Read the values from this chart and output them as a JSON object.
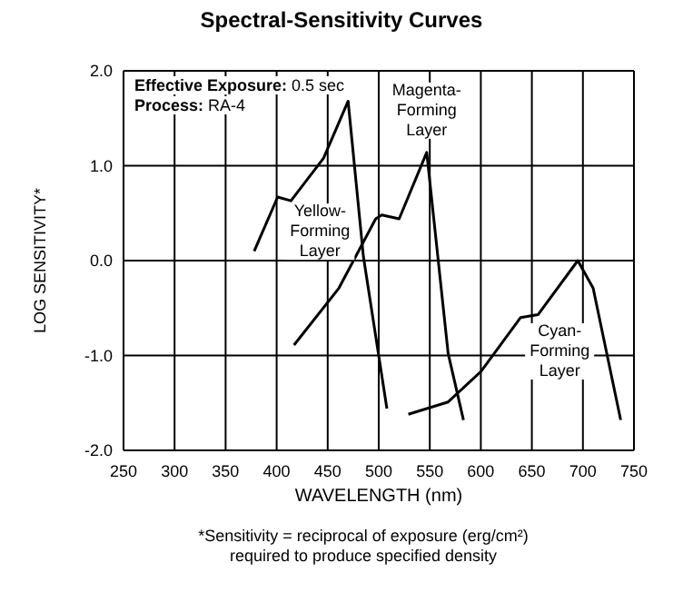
{
  "chart_data": {
    "type": "line",
    "title": "Spectral-Sensitivity Curves",
    "xlabel": "WAVELENGTH (nm)",
    "ylabel": "LOG SENSITIVITY*",
    "series": [
      {
        "name": "Yellow-Forming Layer",
        "color": "#000000",
        "x": [
          378,
          401,
          414,
          446,
          470,
          485,
          508
        ],
        "values": [
          0.1,
          0.67,
          0.63,
          1.08,
          1.68,
          0.04,
          -1.56
        ]
      },
      {
        "name": "Magenta-Forming Layer",
        "color": "#000000",
        "x": [
          417,
          461,
          497,
          503,
          520,
          547,
          568,
          583
        ],
        "values": [
          -0.89,
          -0.29,
          0.44,
          0.48,
          0.44,
          1.14,
          -0.98,
          -1.68
        ]
      },
      {
        "name": "Cyan-Forming Layer",
        "color": "#000000",
        "x": [
          529,
          568,
          600,
          639,
          656,
          695,
          710,
          737
        ],
        "values": [
          -1.62,
          -1.49,
          -1.17,
          -0.6,
          -0.57,
          0,
          -0.29,
          -1.68
        ]
      }
    ],
    "xlim": [
      250,
      750
    ],
    "xticks": [
      250,
      300,
      350,
      400,
      450,
      500,
      550,
      600,
      650,
      700,
      750
    ],
    "ylim": [
      -2,
      2
    ],
    "yticks": [
      {
        "value": -2,
        "label": "-2.0"
      },
      {
        "value": -1,
        "label": "-1.0"
      },
      {
        "value": 0,
        "label": "0.0"
      },
      {
        "value": 1,
        "label": "1.0"
      },
      {
        "value": 2,
        "label": "2.0"
      }
    ],
    "grid": true,
    "marker": "none",
    "line_style": "solid",
    "annotations": [
      "Effective Exposure: 0.5 sec",
      "Process: RA-4",
      "*Sensitivity = reciprocal of exposure (erg/cm²) required to produce specified density"
    ]
  }
}
